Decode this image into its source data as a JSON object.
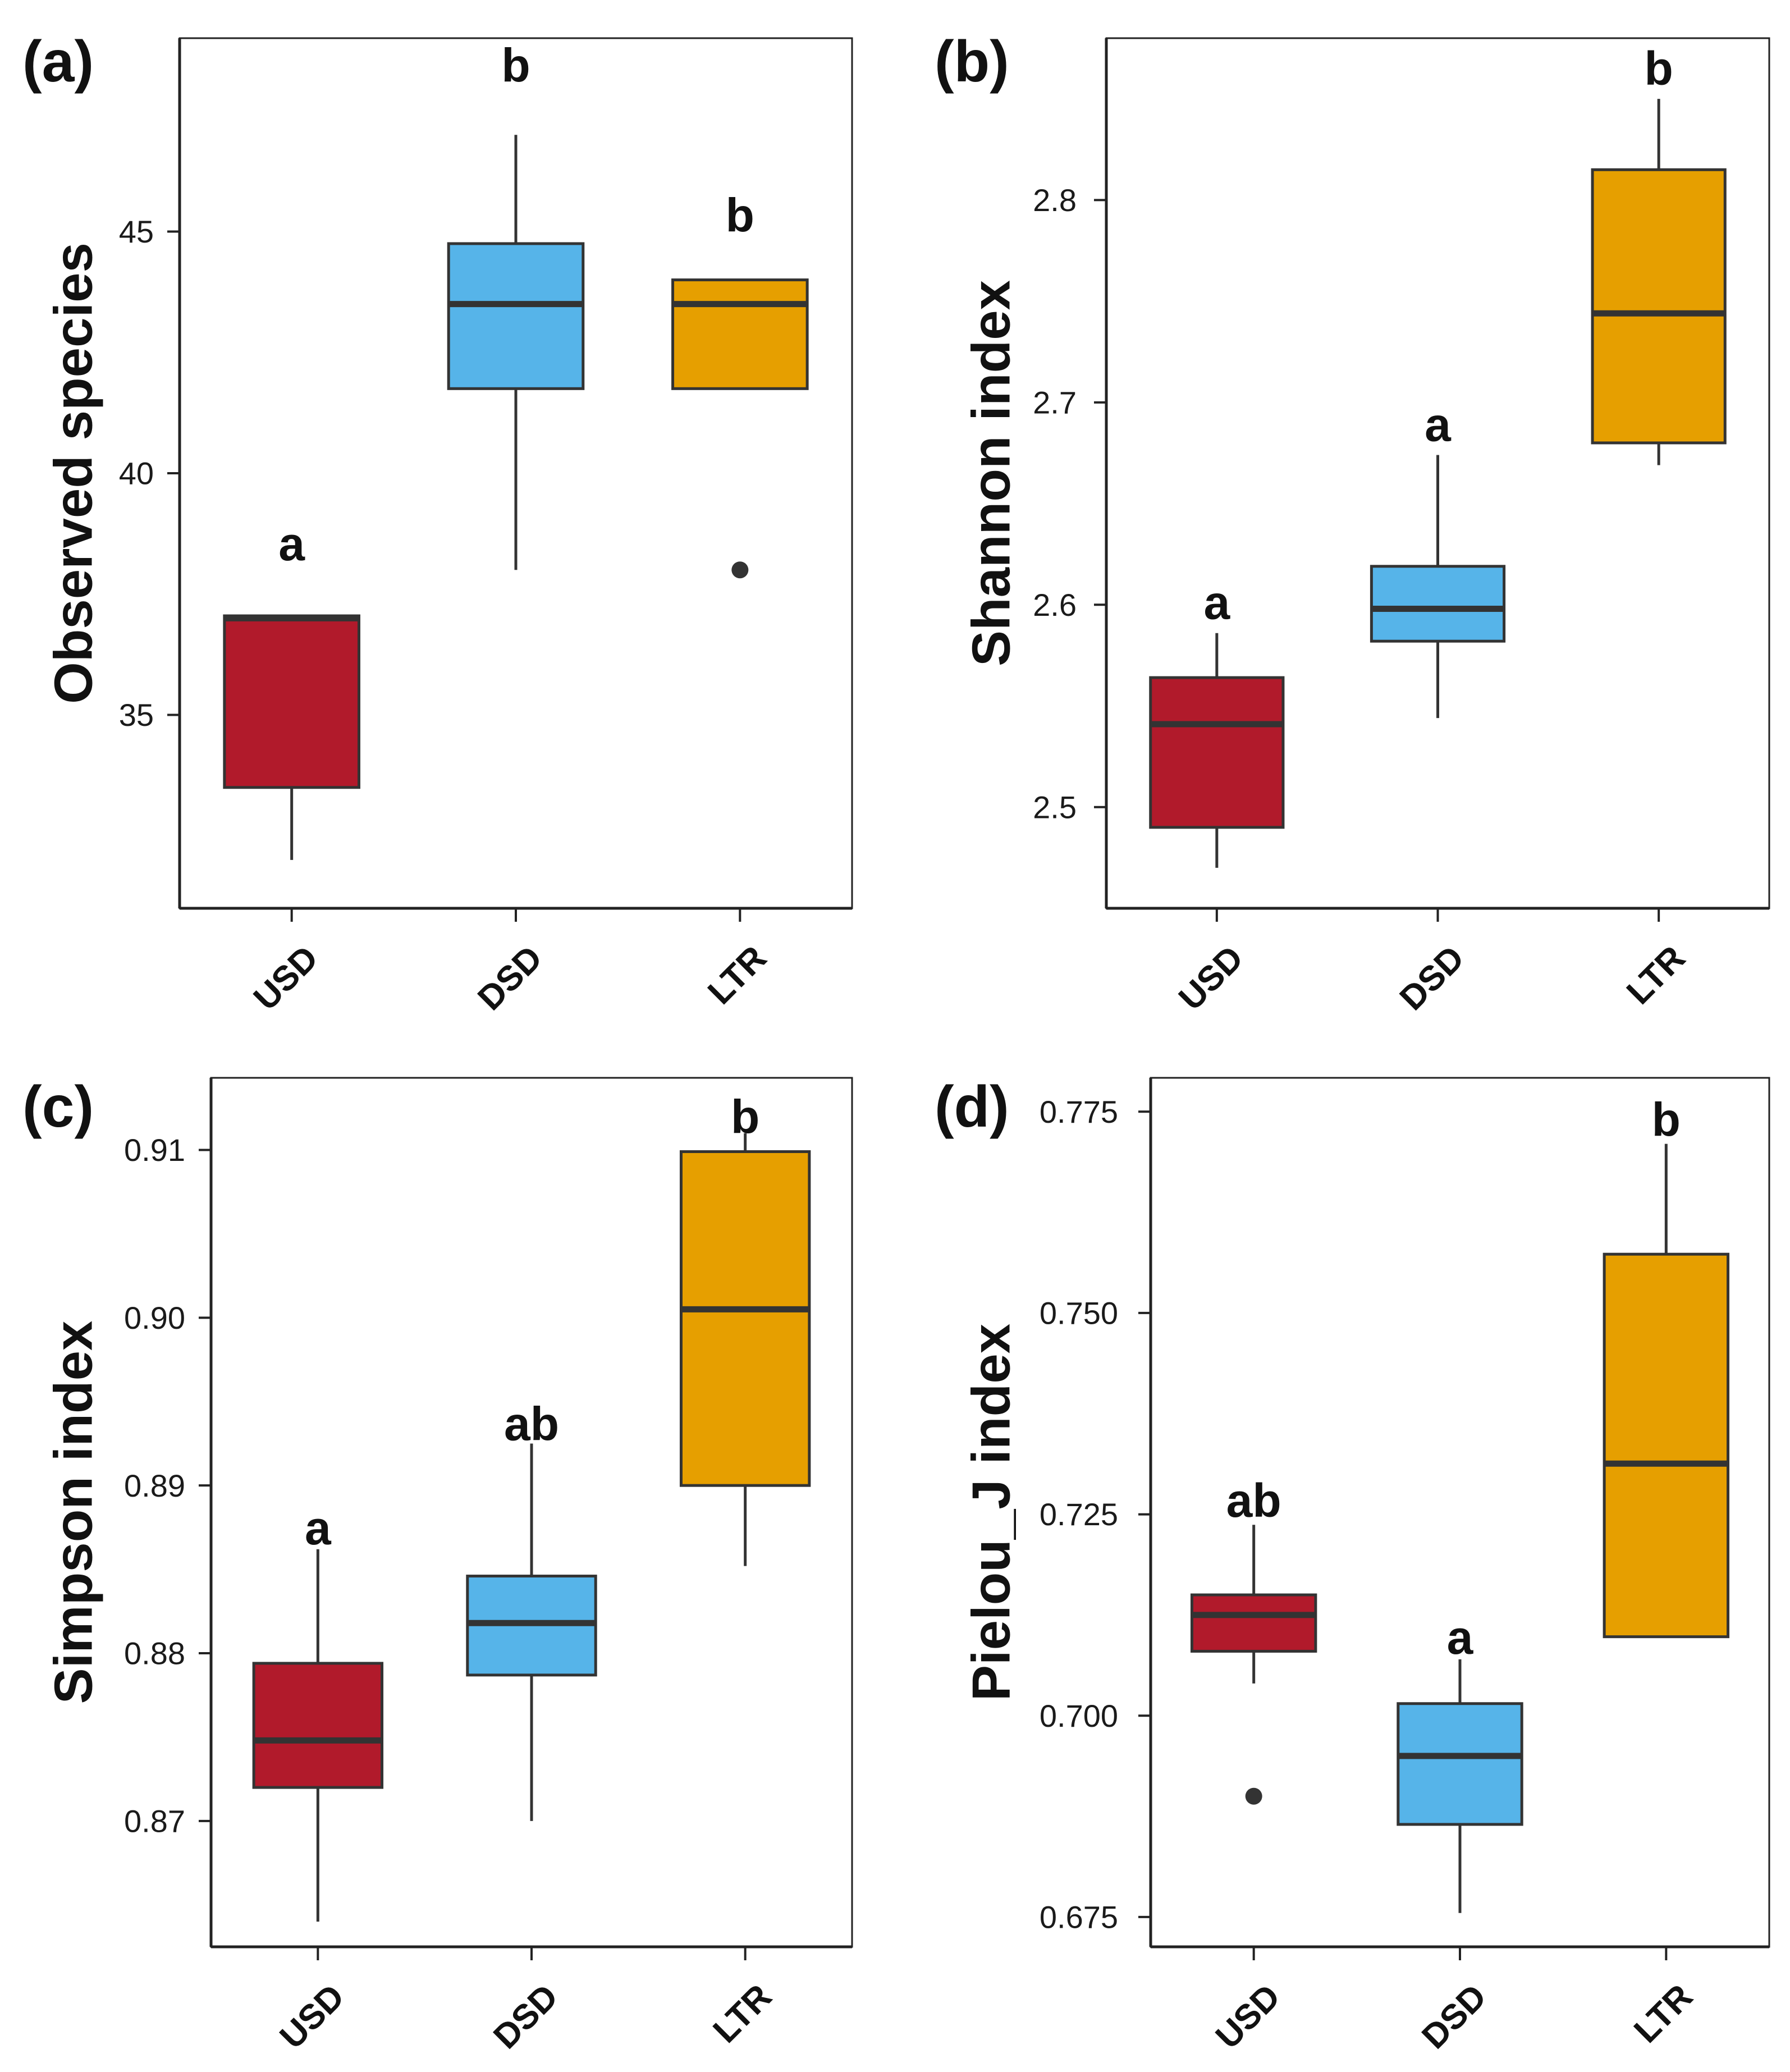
{
  "chart_data": [
    {
      "type": "box",
      "panel": "(a)",
      "ylabel": "Observed species",
      "categories": [
        "USD",
        "DSD",
        "LTR"
      ],
      "colors": [
        "#b11a2b",
        "#56b4e9",
        "#e69f00"
      ],
      "ylim": [
        31,
        49
      ],
      "yticks": [
        35,
        40,
        45
      ],
      "ytick_labels": [
        "35",
        "40",
        "45"
      ],
      "boxes": [
        {
          "min": 32,
          "q1": 33.5,
          "median": 37,
          "q3": 37.05,
          "max": 37.05,
          "outliers": []
        },
        {
          "min": 38,
          "q1": 41.75,
          "median": 43.5,
          "q3": 44.75,
          "max": 47,
          "outliers": []
        },
        {
          "min": 41.75,
          "q1": 41.75,
          "median": 43.5,
          "q3": 44,
          "max": 44,
          "outliers": [
            38
          ]
        }
      ],
      "letters": [
        "a",
        "b",
        "b"
      ],
      "letter_values": [
        38.2,
        48.1,
        45.0
      ]
    },
    {
      "type": "box",
      "panel": "(b)",
      "ylabel": "Shannon index",
      "categories": [
        "USD",
        "DSD",
        "LTR"
      ],
      "colors": [
        "#b11a2b",
        "#56b4e9",
        "#e69f00"
      ],
      "ylim": [
        2.45,
        2.88
      ],
      "yticks": [
        2.5,
        2.6,
        2.7,
        2.8
      ],
      "ytick_labels": [
        "2.5",
        "2.6",
        "2.7",
        "2.8"
      ],
      "boxes": [
        {
          "min": 2.47,
          "q1": 2.49,
          "median": 2.541,
          "q3": 2.564,
          "max": 2.586,
          "outliers": []
        },
        {
          "min": 2.544,
          "q1": 2.582,
          "median": 2.598,
          "q3": 2.619,
          "max": 2.674,
          "outliers": []
        },
        {
          "min": 2.669,
          "q1": 2.68,
          "median": 2.744,
          "q3": 2.815,
          "max": 2.85,
          "outliers": []
        }
      ],
      "letters": [
        "a",
        "a",
        "b"
      ],
      "letter_values": [
        2.593,
        2.681,
        2.857
      ]
    },
    {
      "type": "box",
      "panel": "(c)",
      "ylabel": "Simpson index",
      "categories": [
        "USD",
        "DSD",
        "LTR"
      ],
      "colors": [
        "#b11a2b",
        "#56b4e9",
        "#e69f00"
      ],
      "ylim": [
        0.8625,
        0.9143
      ],
      "yticks": [
        0.87,
        0.88,
        0.89,
        0.9,
        0.91
      ],
      "ytick_labels": [
        "0.87",
        "0.88",
        "0.89",
        "0.90",
        "0.91"
      ],
      "boxes": [
        {
          "min": 0.864,
          "q1": 0.872,
          "median": 0.8748,
          "q3": 0.8794,
          "max": 0.8862,
          "outliers": []
        },
        {
          "min": 0.87,
          "q1": 0.8787,
          "median": 0.8818,
          "q3": 0.8846,
          "max": 0.8925,
          "outliers": []
        },
        {
          "min": 0.8852,
          "q1": 0.89,
          "median": 0.9005,
          "q3": 0.9099,
          "max": 0.911,
          "outliers": []
        }
      ],
      "letters": [
        "a",
        "ab",
        "b"
      ],
      "letter_values": [
        0.8865,
        0.8927,
        0.911
      ]
    },
    {
      "type": "box",
      "panel": "(d)",
      "ylabel": "Pielou_J index",
      "categories": [
        "USD",
        "DSD",
        "LTR"
      ],
      "colors": [
        "#b11a2b",
        "#56b4e9",
        "#e69f00"
      ],
      "ylim": [
        0.6713,
        0.7792
      ],
      "yticks": [
        0.675,
        0.7,
        0.725,
        0.75,
        0.775
      ],
      "ytick_labels": [
        "0.675",
        "0.700",
        "0.725",
        "0.750",
        "0.775"
      ],
      "boxes": [
        {
          "min": 0.704,
          "q1": 0.708,
          "median": 0.7125,
          "q3": 0.715,
          "max": 0.7237,
          "outliers": [
            0.69
          ]
        },
        {
          "min": 0.6755,
          "q1": 0.6865,
          "median": 0.695,
          "q3": 0.7015,
          "max": 0.707,
          "outliers": []
        },
        {
          "min": 0.7098,
          "q1": 0.7098,
          "median": 0.7313,
          "q3": 0.7573,
          "max": 0.771,
          "outliers": []
        }
      ],
      "letters": [
        "ab",
        "a",
        "b"
      ],
      "letter_values": [
        0.7247,
        0.7077,
        0.772
      ]
    }
  ]
}
